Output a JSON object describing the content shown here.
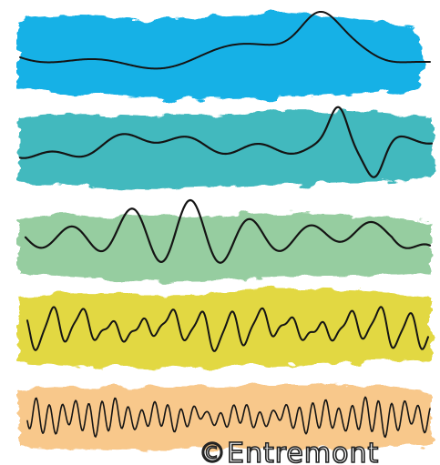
{
  "credit": {
    "text": "©Entremont"
  },
  "colors": {
    "band_1": "#18b1e6",
    "band_2": "#43b9be",
    "band_3": "#96cda0",
    "band_4": "#e2d843",
    "band_5": "#f8c88b",
    "ink": "#141414",
    "background": "#ffffff"
  }
}
